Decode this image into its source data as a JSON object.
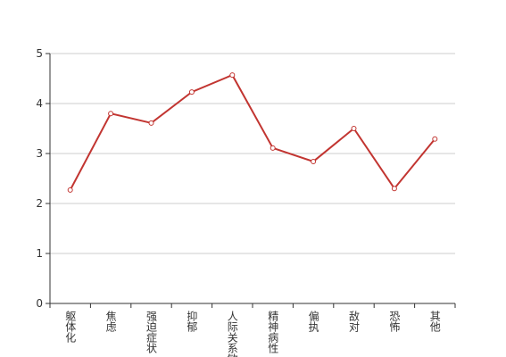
{
  "chart_data": {
    "type": "line",
    "categories": [
      "躯体化",
      "焦虑",
      "强迫症状",
      "抑郁",
      "人际关系敏感",
      "精神病性",
      "偏执",
      "敌对",
      "恐怖",
      "其他"
    ],
    "values": [
      2.27,
      3.8,
      3.61,
      4.23,
      4.57,
      3.11,
      2.84,
      3.5,
      2.3,
      3.29
    ],
    "color": "#c23531",
    "ylim": [
      0,
      5
    ],
    "yticks": [
      0,
      1,
      2,
      3,
      4,
      5
    ],
    "grid": true
  }
}
